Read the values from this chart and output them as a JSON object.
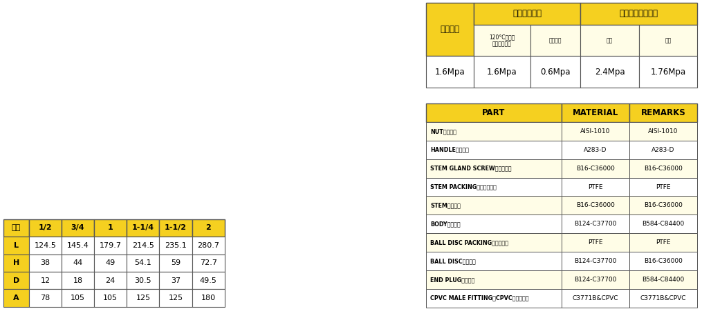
{
  "pressure_table": {
    "col1_header": "公稱壓力",
    "col2_header": "最高使用壓力",
    "col3_header": "試驗壓力（水壓）",
    "sub_col1": "120°C以下之\n水・油・氣體",
    "sub_col2": "飽和蠢汽",
    "sub_col3": "銃鑄",
    "sub_col4": "閥座",
    "nominal": "1.6Mpa",
    "max1": "1.6Mpa",
    "max2": "0.6Mpa",
    "test1": "2.4Mpa",
    "test2": "1.76Mpa",
    "header_bg": "#F5D020",
    "sub_bg": "#FFFDE7",
    "data_bg": "#FFFFFF"
  },
  "parts_table": {
    "headers": [
      "PART",
      "MATERIAL",
      "REMARKS"
    ],
    "rows": [
      [
        "NUT（螺母）",
        "AISI-1010",
        "AISI-1010"
      ],
      [
        "HANDLE（把手）",
        "A283-D",
        "A283-D"
      ],
      [
        "STEM GLAND SCREW（壓止塞）",
        "B16-C36000",
        "B16-C36000"
      ],
      [
        "STEM PACKING（心軸迫緊）",
        "PTFE",
        "PTFE"
      ],
      [
        "STEM（心軸）",
        "B16-C36000",
        "B16-C36000"
      ],
      [
        "BODY（本體）",
        "B124-C37700",
        "B584-C84400"
      ],
      [
        "BALL DISC PACKING（鐵氟龍）",
        "PTFE",
        "PTFE"
      ],
      [
        "BALL DISC（銃球）",
        "B124-C37700",
        "B16-C36000"
      ],
      [
        "END PLUG（旋塞）",
        "B124-C37700",
        "B584-C84400"
      ],
      [
        "CPVC MALE FITTING（CPVC外牙接頭）",
        "C3771B&CPVC",
        "C3771B&CPVC"
      ]
    ],
    "header_bg": "#F5D020",
    "row_bg_odd": "#FFFDE7",
    "row_bg_even": "#FFFFFF"
  },
  "dim_table": {
    "headers": [
      "尺寸",
      "1/2",
      "3/4",
      "1",
      "1-1/4",
      "1-1/2",
      "2"
    ],
    "rows": [
      [
        "L",
        "124.5",
        "145.4",
        "179.7",
        "214.5",
        "235.1",
        "280.7"
      ],
      [
        "H",
        "38",
        "44",
        "49",
        "54.1",
        "59",
        "72.7"
      ],
      [
        "D",
        "12",
        "18",
        "24",
        "30.5",
        "37",
        "49.5"
      ],
      [
        "A",
        "78",
        "105",
        "105",
        "125",
        "125",
        "180"
      ]
    ],
    "header_bg": "#F5D020",
    "data_bg": "#FFFFFF"
  },
  "yellow": "#F5D020",
  "light_yellow": "#FFFDE7",
  "white": "#FFFFFF",
  "dark_border": "#555555"
}
